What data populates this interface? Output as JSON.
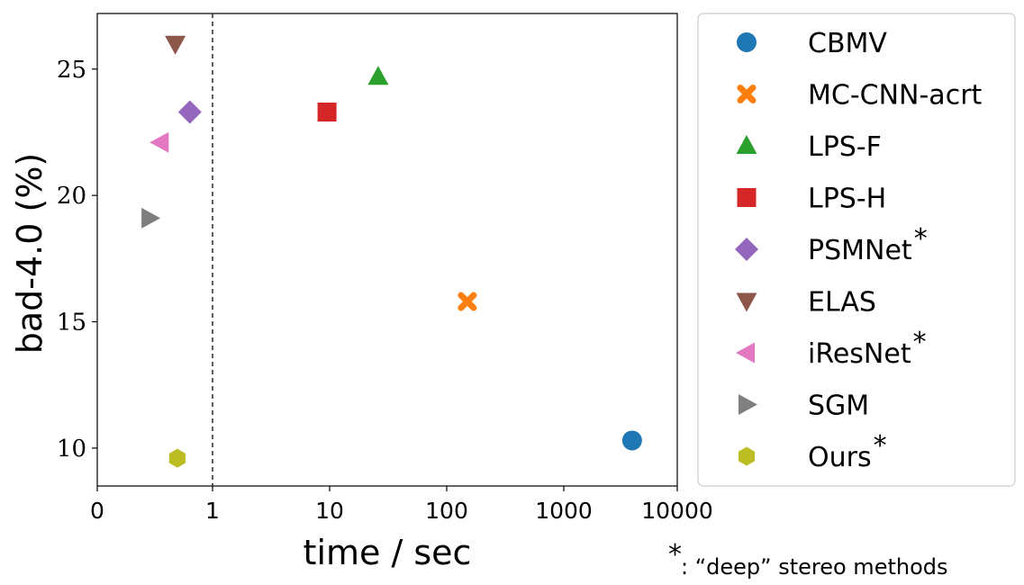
{
  "chart_data": {
    "type": "scatter",
    "title": "",
    "xlabel": "time / sec",
    "ylabel": "bad-4.0 (%)",
    "x_scale": "log",
    "x_ticks": [
      0,
      1,
      10,
      100,
      1000,
      10000
    ],
    "x_tick_labels": [
      "0",
      "1",
      "10",
      "100",
      "1000",
      "10000"
    ],
    "y_ticks": [
      10,
      15,
      20,
      25
    ],
    "y_tick_labels": [
      "10",
      "15",
      "20",
      "25"
    ],
    "ylim": [
      8.5,
      27.2
    ],
    "grid": false,
    "realtime_line_x": 1,
    "legend_position": "right",
    "series": [
      {
        "name": "CBMV",
        "deep": false,
        "marker": "circle",
        "color": "#1f77b4",
        "x": 4000,
        "y": 10.3
      },
      {
        "name": "MC-CNN-acrt",
        "deep": false,
        "marker": "x",
        "color": "#ff7f0e",
        "x": 150,
        "y": 15.8
      },
      {
        "name": "LPS-F",
        "deep": false,
        "marker": "triangle-up",
        "color": "#2ca02c",
        "x": 26,
        "y": 24.7
      },
      {
        "name": "LPS-H",
        "deep": false,
        "marker": "square",
        "color": "#d62728",
        "x": 9.5,
        "y": 23.3
      },
      {
        "name": "PSMNet",
        "deep": true,
        "marker": "diamond",
        "color": "#9467bd",
        "x": 0.64,
        "y": 23.3
      },
      {
        "name": "ELAS",
        "deep": false,
        "marker": "triangle-down",
        "color": "#8c564b",
        "x": 0.48,
        "y": 26.0
      },
      {
        "name": "iResNet",
        "deep": true,
        "marker": "triangle-left",
        "color": "#e377c2",
        "x": 0.36,
        "y": 22.1
      },
      {
        "name": "SGM",
        "deep": false,
        "marker": "triangle-right",
        "color": "#7f7f7f",
        "x": 0.29,
        "y": 19.1
      },
      {
        "name": "Ours",
        "deep": true,
        "marker": "hexagon",
        "color": "#bcbd22",
        "x": 0.5,
        "y": 9.6
      }
    ],
    "deep_marker": "*",
    "footnote": ": “deep” stereo methods"
  }
}
